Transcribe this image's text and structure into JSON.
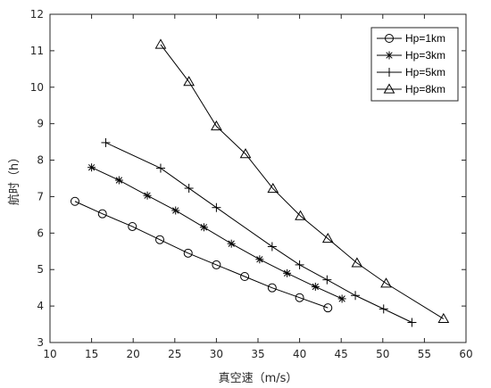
{
  "chart_data": {
    "type": "line",
    "title": "",
    "xlabel": "真空速（m/s）",
    "ylabel": "航时（h）",
    "xlim": [
      10,
      60
    ],
    "ylim": [
      3,
      12
    ],
    "xticks": [
      "10",
      "15",
      "20",
      "25",
      "30",
      "35",
      "40",
      "45",
      "50",
      "55",
      "60"
    ],
    "yticks": [
      "3",
      "4",
      "5",
      "6",
      "7",
      "8",
      "9",
      "10",
      "11",
      "12"
    ],
    "grid": false,
    "legend": "top-right",
    "series": [
      {
        "name": "Hp=1km",
        "marker": "circle",
        "x": [
          13.0,
          16.3,
          19.9,
          23.2,
          26.6,
          30.0,
          33.4,
          36.7,
          40.0,
          43.4
        ],
        "y": [
          6.87,
          6.53,
          6.18,
          5.82,
          5.45,
          5.13,
          4.81,
          4.5,
          4.23,
          3.95
        ]
      },
      {
        "name": "Hp=3km",
        "marker": "asterisk",
        "x": [
          15.0,
          18.3,
          21.7,
          25.1,
          28.5,
          31.8,
          35.2,
          38.5,
          41.9,
          45.1
        ],
        "y": [
          7.8,
          7.45,
          7.03,
          6.62,
          6.16,
          5.71,
          5.28,
          4.9,
          4.53,
          4.2
        ]
      },
      {
        "name": "Hp=5km",
        "marker": "plus",
        "x": [
          16.7,
          23.3,
          26.7,
          30.0,
          36.7,
          40.0,
          43.3,
          46.7,
          50.1,
          53.5
        ],
        "y": [
          8.48,
          7.78,
          7.23,
          6.7,
          5.63,
          5.13,
          4.72,
          4.29,
          3.92,
          3.55
        ]
      },
      {
        "name": "Hp=8km",
        "marker": "triangle",
        "x": [
          23.3,
          26.7,
          30.0,
          33.5,
          36.8,
          40.1,
          43.4,
          46.9,
          50.4,
          57.3
        ],
        "y": [
          11.17,
          10.15,
          8.93,
          8.17,
          7.22,
          6.47,
          5.85,
          5.18,
          4.62,
          3.65
        ]
      }
    ]
  }
}
